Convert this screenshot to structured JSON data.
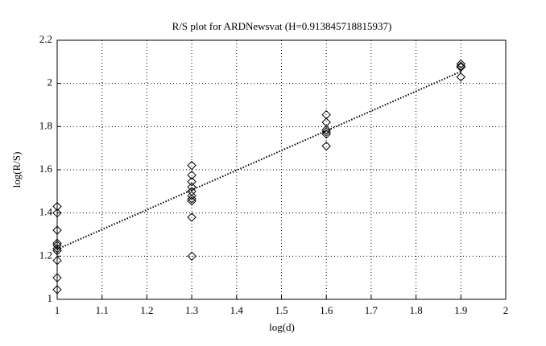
{
  "chart_data": {
    "type": "scatter",
    "title": "R/S plot for ARDNewsvat (H=0.913845718815937)",
    "x_label": "log(d)",
    "y_label": "log(R/S)",
    "x": [
      1,
      1,
      1,
      1,
      1,
      1,
      1,
      1,
      1,
      1,
      1.3,
      1.3,
      1.3,
      1.3,
      1.3,
      1.3,
      1.3,
      1.3,
      1.3,
      1.3,
      1.6,
      1.6,
      1.6,
      1.6,
      1.6,
      1.6,
      1.9,
      1.9,
      1.9,
      1.9
    ],
    "values": [
      1.43,
      1.4,
      1.32,
      1.26,
      1.25,
      1.235,
      1.225,
      1.18,
      1.1,
      1.045,
      1.62,
      1.575,
      1.545,
      1.52,
      1.5,
      1.48,
      1.465,
      1.455,
      1.38,
      1.2,
      1.855,
      1.82,
      1.785,
      1.775,
      1.765,
      1.71,
      2.09,
      2.08,
      2.075,
      2.03
    ],
    "color": "#000000",
    "fit": {
      "x": [
        1,
        1.9
      ],
      "values": [
        1.232,
        2.055
      ]
    },
    "xlim": [
      1,
      2
    ],
    "xticks": [
      1,
      1.1,
      1.2,
      1.3,
      1.4,
      1.5,
      1.6,
      1.7,
      1.8,
      1.9,
      2
    ],
    "ylim": [
      1,
      2.2
    ],
    "yticks": [
      1,
      1.2,
      1.4,
      1.6,
      1.8,
      2,
      2.2
    ],
    "grid": true
  }
}
